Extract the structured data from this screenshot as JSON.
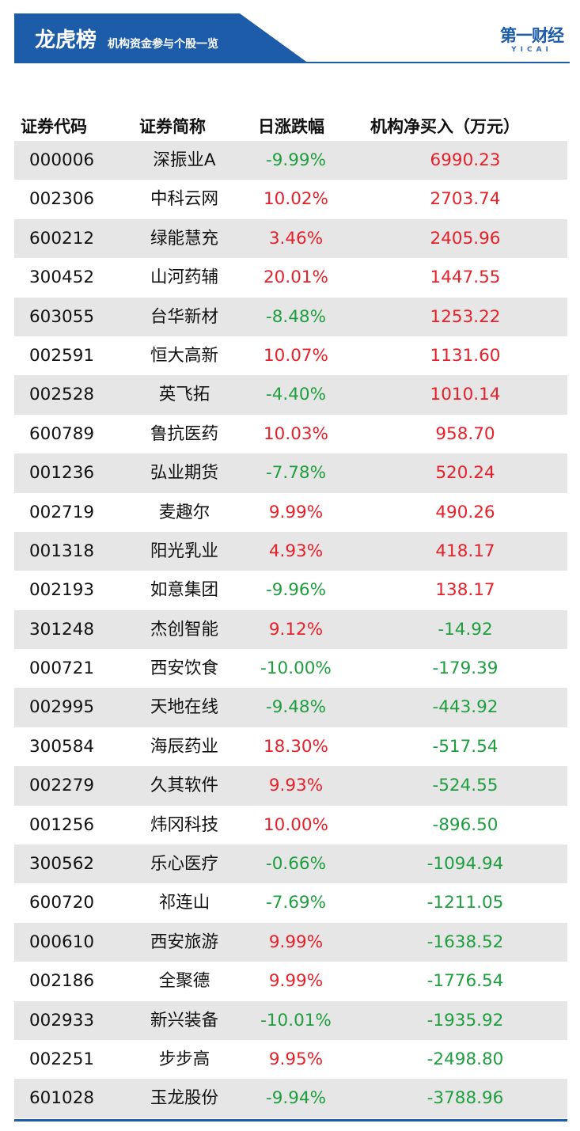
{
  "header": {
    "title": "龙虎榜",
    "subtitle": "机构资金参与个股一览",
    "logo_main": "第一财经",
    "logo_sub": "YICAI",
    "brand_color": "#1c5ca8"
  },
  "table": {
    "columns": [
      "证券代码",
      "证券简称",
      "日涨跌幅",
      "机构净买入（万元）"
    ],
    "rows": [
      {
        "code": "000006",
        "name": "深振业A",
        "change": "-9.99%",
        "net_buy": "6990.23"
      },
      {
        "code": "002306",
        "name": "中科云网",
        "change": "10.02%",
        "net_buy": "2703.74"
      },
      {
        "code": "600212",
        "name": "绿能慧充",
        "change": "3.46%",
        "net_buy": "2405.96"
      },
      {
        "code": "300452",
        "name": "山河药辅",
        "change": "20.01%",
        "net_buy": "1447.55"
      },
      {
        "code": "603055",
        "name": "台华新材",
        "change": "-8.48%",
        "net_buy": "1253.22"
      },
      {
        "code": "002591",
        "name": "恒大高新",
        "change": "10.07%",
        "net_buy": "1131.60"
      },
      {
        "code": "002528",
        "name": "英飞拓",
        "change": "-4.40%",
        "net_buy": "1010.14"
      },
      {
        "code": "600789",
        "name": "鲁抗医药",
        "change": "10.03%",
        "net_buy": "958.70"
      },
      {
        "code": "001236",
        "name": "弘业期货",
        "change": "-7.78%",
        "net_buy": "520.24"
      },
      {
        "code": "002719",
        "name": "麦趣尔",
        "change": "9.99%",
        "net_buy": "490.26"
      },
      {
        "code": "001318",
        "name": "阳光乳业",
        "change": "4.93%",
        "net_buy": "418.17"
      },
      {
        "code": "002193",
        "name": "如意集团",
        "change": "-9.96%",
        "net_buy": "138.17"
      },
      {
        "code": "301248",
        "name": "杰创智能",
        "change": "9.12%",
        "net_buy": "-14.92"
      },
      {
        "code": "000721",
        "name": "西安饮食",
        "change": "-10.00%",
        "net_buy": "-179.39"
      },
      {
        "code": "002995",
        "name": "天地在线",
        "change": "-9.48%",
        "net_buy": "-443.92"
      },
      {
        "code": "300584",
        "name": "海辰药业",
        "change": "18.30%",
        "net_buy": "-517.54"
      },
      {
        "code": "002279",
        "name": "久其软件",
        "change": "9.93%",
        "net_buy": "-524.55"
      },
      {
        "code": "001256",
        "name": "炜冈科技",
        "change": "10.00%",
        "net_buy": "-896.50"
      },
      {
        "code": "300562",
        "name": "乐心医疗",
        "change": "-0.66%",
        "net_buy": "-1094.94"
      },
      {
        "code": "600720",
        "name": "祁连山",
        "change": "-7.69%",
        "net_buy": "-1211.05"
      },
      {
        "code": "000610",
        "name": "西安旅游",
        "change": "9.99%",
        "net_buy": "-1638.52"
      },
      {
        "code": "002186",
        "name": "全聚德",
        "change": "9.99%",
        "net_buy": "-1776.54"
      },
      {
        "code": "002933",
        "name": "新兴装备",
        "change": "-10.01%",
        "net_buy": "-1935.92"
      },
      {
        "code": "002251",
        "name": "步步高",
        "change": "9.95%",
        "net_buy": "-2498.80"
      },
      {
        "code": "601028",
        "name": "玉龙股份",
        "change": "-9.94%",
        "net_buy": "-3788.96"
      }
    ]
  },
  "colors": {
    "positive": "#e8202a",
    "negative": "#1e9e3e",
    "row_shade": "#e6e6e6"
  }
}
